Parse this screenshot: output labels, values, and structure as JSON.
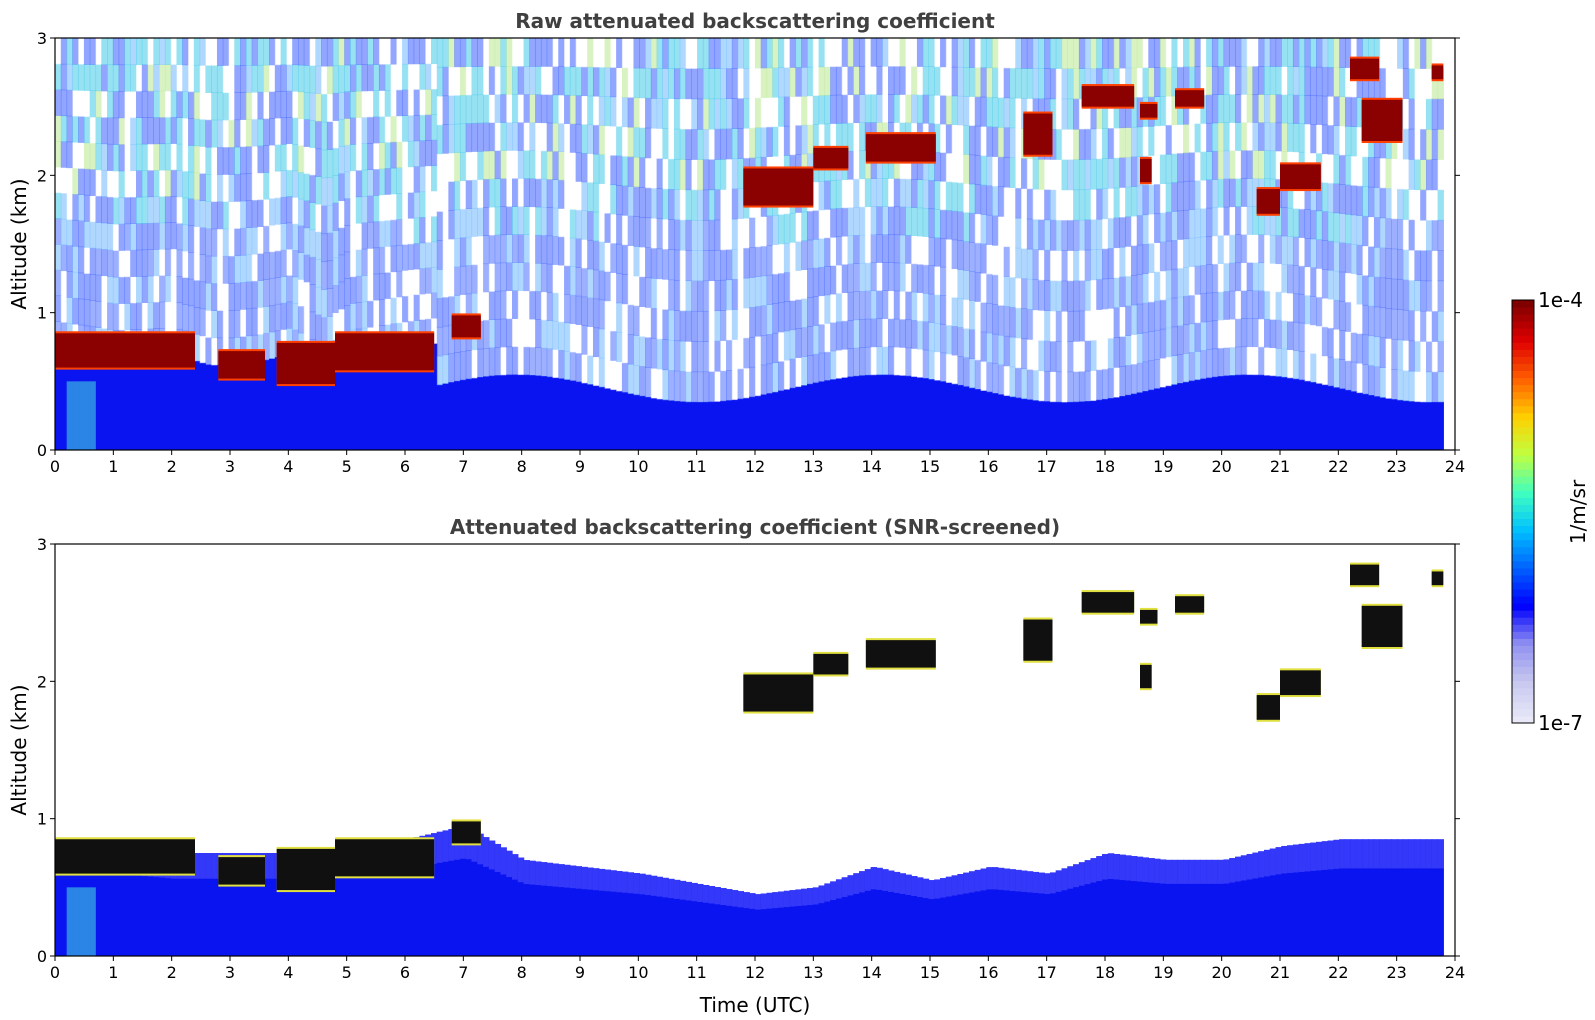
{
  "chart_data": [
    {
      "type": "heatmap",
      "title": "Raw attenuated backscattering coefficient",
      "xlabel": "",
      "ylabel": "Altitude (km)",
      "xlim": [
        0,
        24
      ],
      "ylim": [
        0,
        3
      ],
      "xticks": [
        0,
        1,
        2,
        3,
        4,
        5,
        6,
        7,
        8,
        9,
        10,
        11,
        12,
        13,
        14,
        15,
        16,
        17,
        18,
        19,
        20,
        21,
        22,
        23,
        24
      ],
      "yticks": [
        0,
        1,
        2,
        3
      ],
      "data_end_time": 23.8,
      "boundary_layer_top_km": [
        {
          "t": 0,
          "z": 0.75
        },
        {
          "t": 1,
          "z": 0.68
        },
        {
          "t": 2,
          "z": 0.7
        },
        {
          "t": 2.6,
          "z": 0.62
        },
        {
          "t": 3,
          "z": 0.62
        },
        {
          "t": 3.5,
          "z": 0.65
        },
        {
          "t": 4,
          "z": 0.7
        },
        {
          "t": 4.6,
          "z": 0.55
        },
        {
          "t": 5,
          "z": 0.68
        },
        {
          "t": 6,
          "z": 0.75
        },
        {
          "t": 6.5,
          "z": 0.78
        }
      ],
      "cloud_layers": [
        {
          "t_start": 0.0,
          "t_end": 2.4,
          "base_km": 0.6,
          "top_km": 0.85
        },
        {
          "t_start": 2.8,
          "t_end": 3.6,
          "base_km": 0.52,
          "top_km": 0.72
        },
        {
          "t_start": 3.8,
          "t_end": 4.8,
          "base_km": 0.48,
          "top_km": 0.78
        },
        {
          "t_start": 4.8,
          "t_end": 6.5,
          "base_km": 0.58,
          "top_km": 0.85
        },
        {
          "t_start": 6.8,
          "t_end": 7.3,
          "base_km": 0.82,
          "top_km": 0.98
        },
        {
          "t_start": 11.8,
          "t_end": 13.0,
          "base_km": 1.78,
          "top_km": 2.05
        },
        {
          "t_start": 13.0,
          "t_end": 13.6,
          "base_km": 2.05,
          "top_km": 2.2
        },
        {
          "t_start": 13.9,
          "t_end": 15.1,
          "base_km": 2.1,
          "top_km": 2.3
        },
        {
          "t_start": 16.6,
          "t_end": 17.1,
          "base_km": 2.15,
          "top_km": 2.45
        },
        {
          "t_start": 17.6,
          "t_end": 18.5,
          "base_km": 2.5,
          "top_km": 2.65
        },
        {
          "t_start": 18.6,
          "t_end": 18.9,
          "base_km": 2.42,
          "top_km": 2.52
        },
        {
          "t_start": 18.6,
          "t_end": 18.8,
          "base_km": 1.95,
          "top_km": 2.12
        },
        {
          "t_start": 19.2,
          "t_end": 19.7,
          "base_km": 2.5,
          "top_km": 2.62
        },
        {
          "t_start": 20.6,
          "t_end": 21.0,
          "base_km": 1.72,
          "top_km": 1.9
        },
        {
          "t_start": 21.0,
          "t_end": 21.7,
          "base_km": 1.9,
          "top_km": 2.08
        },
        {
          "t_start": 22.2,
          "t_end": 22.7,
          "base_km": 2.7,
          "top_km": 2.85
        },
        {
          "t_start": 22.4,
          "t_end": 23.1,
          "base_km": 2.25,
          "top_km": 2.55
        },
        {
          "t_start": 23.6,
          "t_end": 23.8,
          "base_km": 2.7,
          "top_km": 2.8
        }
      ]
    },
    {
      "type": "heatmap",
      "title": "Attenuated backscattering coefficient (SNR-screened)",
      "xlabel": "Time (UTC)",
      "ylabel": "Altitude (km)",
      "xlim": [
        0,
        24
      ],
      "ylim": [
        0,
        3
      ],
      "xticks": [
        0,
        1,
        2,
        3,
        4,
        5,
        6,
        7,
        8,
        9,
        10,
        11,
        12,
        13,
        14,
        15,
        16,
        17,
        18,
        19,
        20,
        21,
        22,
        23,
        24
      ],
      "yticks": [
        0,
        1,
        2,
        3
      ],
      "data_end_time": 23.8,
      "screened_signal_top_km": [
        {
          "t": 0,
          "z": 0.85
        },
        {
          "t": 2,
          "z": 0.75
        },
        {
          "t": 4,
          "z": 0.75
        },
        {
          "t": 6,
          "z": 0.85
        },
        {
          "t": 7,
          "z": 0.95
        },
        {
          "t": 8,
          "z": 0.7
        },
        {
          "t": 10,
          "z": 0.6
        },
        {
          "t": 12,
          "z": 0.45
        },
        {
          "t": 13,
          "z": 0.5
        },
        {
          "t": 14,
          "z": 0.65
        },
        {
          "t": 15,
          "z": 0.55
        },
        {
          "t": 16,
          "z": 0.65
        },
        {
          "t": 17,
          "z": 0.6
        },
        {
          "t": 18,
          "z": 0.75
        },
        {
          "t": 19,
          "z": 0.7
        },
        {
          "t": 20,
          "z": 0.7
        },
        {
          "t": 21,
          "z": 0.8
        },
        {
          "t": 22,
          "z": 0.85
        },
        {
          "t": 23.8,
          "z": 0.85
        }
      ],
      "colorbar": {
        "label": "1/m/sr",
        "min_label": "1e-7",
        "max_label": "1e-4",
        "scale": "log",
        "colormap": "jet",
        "colors": [
          "#e8e8f8",
          "#c8c8f0",
          "#9090f0",
          "#0000ff",
          "#0060ff",
          "#00c0ff",
          "#40ffc0",
          "#c0ff40",
          "#ffd000",
          "#ff6000",
          "#e00000",
          "#800000"
        ]
      }
    }
  ]
}
